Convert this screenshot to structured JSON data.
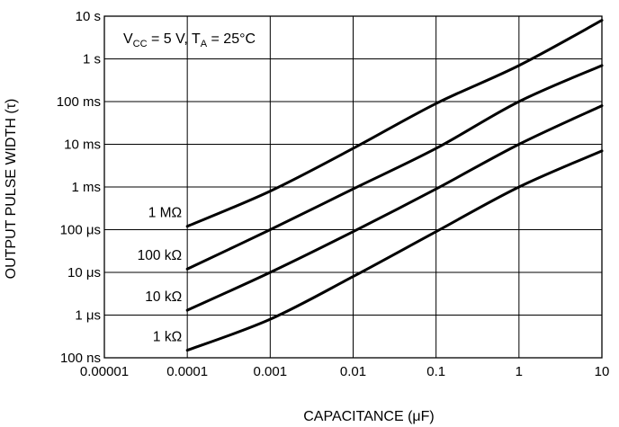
{
  "chart_data": {
    "type": "line",
    "x_scale": "log",
    "y_scale": "log",
    "xlabel": "CAPACITANCE (μF)",
    "ylabel": "OUTPUT PULSE WIDTH (τ)",
    "xlim": [
      1e-05,
      10
    ],
    "ylim_seconds": [
      1e-07,
      10
    ],
    "grid": true,
    "x_ticks": [
      {
        "value": 1e-05,
        "label": "0.00001"
      },
      {
        "value": 0.0001,
        "label": "0.0001"
      },
      {
        "value": 0.001,
        "label": "0.001"
      },
      {
        "value": 0.01,
        "label": "0.01"
      },
      {
        "value": 0.1,
        "label": "0.1"
      },
      {
        "value": 1,
        "label": "1"
      },
      {
        "value": 10,
        "label": "10"
      }
    ],
    "y_ticks": [
      {
        "value": 10,
        "label": "10 s"
      },
      {
        "value": 1,
        "label": "1 s"
      },
      {
        "value": 0.1,
        "label": "100 ms"
      },
      {
        "value": 0.01,
        "label": "10 ms"
      },
      {
        "value": 0.001,
        "label": "1 ms"
      },
      {
        "value": 0.0001,
        "label": "100 μs"
      },
      {
        "value": 1e-05,
        "label": "10 μs"
      },
      {
        "value": 1e-06,
        "label": "1 μs"
      },
      {
        "value": 1e-07,
        "label": "100 ns"
      }
    ],
    "annotation": {
      "v_main": "V",
      "v_sub": "CC",
      "v_rest": " = 5 V, T",
      "t_sub": "A",
      "t_rest": " = 25°C"
    },
    "series": [
      {
        "name": "1 MΩ",
        "points": [
          [
            0.0001,
            0.00012
          ],
          [
            0.001,
            0.0008
          ],
          [
            0.01,
            0.008
          ],
          [
            0.1,
            0.09
          ],
          [
            1,
            0.7
          ],
          [
            10,
            8
          ]
        ]
      },
      {
        "name": "100 kΩ",
        "points": [
          [
            0.0001,
            1.2e-05
          ],
          [
            0.001,
            0.0001
          ],
          [
            0.01,
            0.0009
          ],
          [
            0.1,
            0.008
          ],
          [
            1,
            0.1
          ],
          [
            10,
            0.7
          ]
        ]
      },
      {
        "name": "10 kΩ",
        "points": [
          [
            0.0001,
            1.3e-06
          ],
          [
            0.001,
            1e-05
          ],
          [
            0.01,
            9e-05
          ],
          [
            0.1,
            0.0009
          ],
          [
            1,
            0.01
          ],
          [
            10,
            0.08
          ]
        ]
      },
      {
        "name": "1 kΩ",
        "points": [
          [
            0.0001,
            1.5e-07
          ],
          [
            0.001,
            8e-07
          ],
          [
            0.01,
            8e-06
          ],
          [
            0.1,
            9e-05
          ],
          [
            1,
            0.001
          ],
          [
            10,
            0.007
          ]
        ]
      }
    ]
  }
}
